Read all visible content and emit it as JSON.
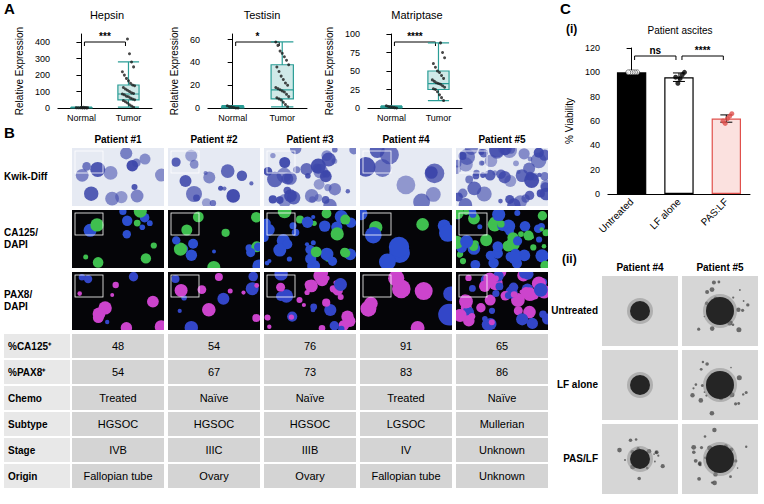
{
  "chart_data": [
    {
      "type": "box",
      "title": "Hepsin",
      "ylabel": "Relative Expression",
      "categories": [
        "Normal",
        "Tumor"
      ],
      "boxes": [
        [
          0,
          0,
          1,
          2,
          5
        ],
        [
          5,
          50,
          85,
          140,
          280
        ]
      ],
      "points": [
        [
          0,
          0,
          0,
          1,
          1,
          2,
          2,
          3,
          4,
          5
        ],
        [
          5,
          12,
          20,
          30,
          38,
          45,
          50,
          55,
          60,
          68,
          72,
          80,
          85,
          88,
          92,
          100,
          108,
          115,
          125,
          135,
          140,
          150,
          165,
          180,
          200,
          220,
          250,
          280,
          330,
          420
        ]
      ],
      "comparisons": [
        {
          "label": "***",
          "pair": [
            "Normal",
            "Tumor"
          ]
        }
      ],
      "color": "#2a9d96",
      "ylim": [
        0,
        450
      ],
      "yticks": [
        0,
        100,
        200,
        300,
        400
      ]
    },
    {
      "type": "box",
      "title": "Testisin",
      "ylabel": "Relative Expression",
      "categories": [
        "Normal",
        "Tumor"
      ],
      "boxes": [
        [
          0,
          0,
          0.5,
          1,
          2
        ],
        [
          1,
          8,
          16,
          38,
          58
        ]
      ],
      "points": [
        [
          0,
          0,
          0.5,
          1,
          1,
          2
        ],
        [
          1,
          3,
          5,
          7,
          8,
          9,
          10,
          12,
          14,
          15,
          16,
          17,
          18,
          20,
          22,
          25,
          28,
          32,
          36,
          38,
          42,
          45,
          48,
          50,
          55,
          58
        ]
      ],
      "comparisons": [
        {
          "label": "*",
          "pair": [
            "Normal",
            "Tumor"
          ]
        }
      ],
      "color": "#2a9d96",
      "ylim": [
        0,
        65
      ],
      "yticks": [
        0,
        20,
        40,
        60
      ]
    },
    {
      "type": "box",
      "title": "Matriptase",
      "ylabel": "Relative Expression",
      "categories": [
        "Normal",
        "Tumor"
      ],
      "boxes": [
        [
          0,
          0.5,
          1,
          2,
          3
        ],
        [
          10,
          25,
          33,
          50,
          88
        ]
      ],
      "points": [
        [
          0,
          0.5,
          1,
          1.5,
          2,
          3
        ],
        [
          10,
          14,
          18,
          22,
          25,
          26,
          28,
          30,
          32,
          33,
          34,
          36,
          38,
          40,
          44,
          48,
          50,
          55,
          60,
          68,
          75,
          88
        ]
      ],
      "comparisons": [
        {
          "label": "****",
          "pair": [
            "Normal",
            "Tumor"
          ]
        }
      ],
      "color": "#2a9d96",
      "ylim": [
        0,
        100
      ],
      "yticks": [
        0,
        25,
        50,
        75,
        100
      ]
    },
    {
      "type": "bar",
      "title": "Patient ascites",
      "ylabel": "% Viability",
      "categories": [
        "Untreated",
        "LF alone",
        "PAS:LF"
      ],
      "values": [
        100,
        96,
        62
      ],
      "errors": [
        0,
        3.5,
        3
      ],
      "points": [
        [
          100,
          100,
          100,
          100,
          100
        ],
        [
          100,
          98,
          95,
          91,
          96
        ],
        [
          66,
          64,
          62,
          58,
          60
        ]
      ],
      "colors": [
        "#000000",
        "#ffffff",
        "#fbe1df"
      ],
      "comparisons": [
        {
          "label": "ns",
          "pair": [
            "Untreated",
            "LF alone"
          ]
        },
        {
          "label": "****",
          "pair": [
            "LF alone",
            "PAS:LF"
          ]
        }
      ],
      "ylim": [
        0,
        120
      ],
      "yticks": [
        0,
        20,
        40,
        60,
        80,
        100,
        120
      ]
    }
  ],
  "figure": {
    "panel_labels": [
      "A",
      "B",
      "C",
      "(i)",
      "(ii)"
    ],
    "staining": {
      "columns": [
        "Patient #1",
        "Patient #2",
        "Patient #3",
        "Patient #4",
        "Patient #5"
      ],
      "rows": [
        "Kwik-Diff",
        "CA125/\nDAPI",
        "PAX8/\nDAPI"
      ],
      "table": [
        {
          "label": "%CA125⁺",
          "values": [
            48,
            54,
            76,
            91,
            65
          ]
        },
        {
          "label": "%PAX8⁺",
          "values": [
            54,
            67,
            73,
            83,
            86
          ]
        },
        {
          "label": "Chemo",
          "values": [
            "Treated",
            "Naïve",
            "Naïve",
            "Treated",
            "Naïve"
          ]
        },
        {
          "label": "Subtype",
          "values": [
            "HGSOC",
            "HGSOC",
            "HGSOC",
            "LGSOC",
            "Mullerian"
          ]
        },
        {
          "label": "Stage",
          "values": [
            "IVB",
            "IIIC",
            "IIIB",
            "IV",
            "Unknown"
          ]
        },
        {
          "label": "Origin",
          "values": [
            "Fallopian tube",
            "Ovary",
            "Ovary",
            "Fallopian tube",
            "Unknown"
          ]
        }
      ]
    },
    "spheroids": {
      "columns": [
        "Patient #4",
        "Patient #5"
      ],
      "rows": [
        "Untreated",
        "LF alone",
        "PAS/LF"
      ]
    }
  }
}
